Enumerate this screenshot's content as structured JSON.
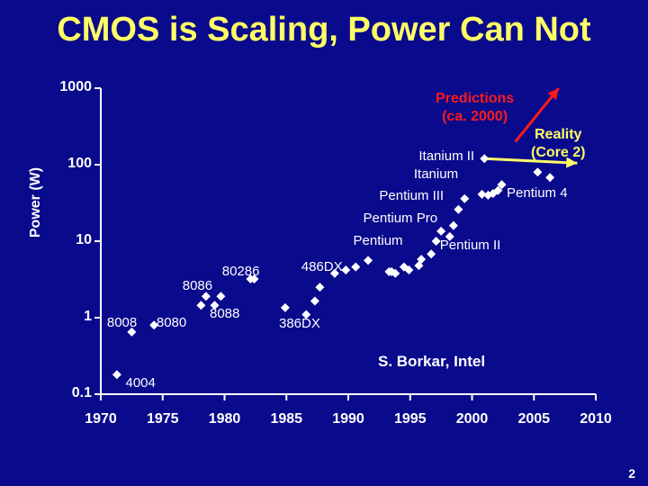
{
  "title": "CMOS is Scaling, Power Can Not",
  "credit": "S. Borkar, Intel",
  "page_number": "2",
  "colors": {
    "background": "#0a0a8c",
    "title": "#ffff66",
    "marker": "#ffffff",
    "prediction": "#ff1a1a",
    "reality": "#ffff66"
  },
  "chart_data": {
    "type": "scatter",
    "ylabel": "Power (W)",
    "xlabel": "",
    "yscale": "log",
    "ylim": [
      0.1,
      1000
    ],
    "xlim": [
      1970,
      2010
    ],
    "ytick_labels": [
      "1000",
      "100",
      "10",
      "1",
      "0.1"
    ],
    "yticks": [
      1000,
      100,
      10,
      1,
      0.1
    ],
    "xtick_labels": [
      "1970",
      "1975",
      "1980",
      "1985",
      "1990",
      "1995",
      "2000",
      "2005",
      "2010"
    ],
    "xticks": [
      1970,
      1975,
      1980,
      1985,
      1990,
      1995,
      2000,
      2005,
      2010
    ],
    "grid": false,
    "points": [
      {
        "x": 1971.3,
        "y": 0.18
      },
      {
        "x": 1972.5,
        "y": 0.65
      },
      {
        "x": 1974.3,
        "y": 0.8
      },
      {
        "x": 1978.1,
        "y": 1.45
      },
      {
        "x": 1978.5,
        "y": 1.9
      },
      {
        "x": 1979.2,
        "y": 1.45
      },
      {
        "x": 1979.7,
        "y": 1.9
      },
      {
        "x": 1982.1,
        "y": 3.2
      },
      {
        "x": 1982.4,
        "y": 3.2
      },
      {
        "x": 1984.9,
        "y": 1.35
      },
      {
        "x": 1986.6,
        "y": 1.1
      },
      {
        "x": 1987.3,
        "y": 1.65
      },
      {
        "x": 1987.7,
        "y": 2.5
      },
      {
        "x": 1988.9,
        "y": 3.8
      },
      {
        "x": 1989.8,
        "y": 4.2
      },
      {
        "x": 1990.6,
        "y": 4.6
      },
      {
        "x": 1991.6,
        "y": 5.6
      },
      {
        "x": 1993.3,
        "y": 4.0
      },
      {
        "x": 1993.5,
        "y": 4.0
      },
      {
        "x": 1993.8,
        "y": 3.8
      },
      {
        "x": 1994.5,
        "y": 4.6
      },
      {
        "x": 1994.9,
        "y": 4.2
      },
      {
        "x": 1995.7,
        "y": 4.8
      },
      {
        "x": 1995.9,
        "y": 5.8
      },
      {
        "x": 1996.7,
        "y": 6.8
      },
      {
        "x": 1997.1,
        "y": 10.0
      },
      {
        "x": 1997.5,
        "y": 13.5
      },
      {
        "x": 1998.2,
        "y": 11.5
      },
      {
        "x": 1998.5,
        "y": 16.0
      },
      {
        "x": 1998.9,
        "y": 26.0
      },
      {
        "x": 1999.4,
        "y": 36.0
      },
      {
        "x": 2000.8,
        "y": 41.0
      },
      {
        "x": 2001.3,
        "y": 40.0
      },
      {
        "x": 2001.7,
        "y": 42.0
      },
      {
        "x": 2002.1,
        "y": 46.0
      },
      {
        "x": 2002.4,
        "y": 55.0
      },
      {
        "x": 2005.3,
        "y": 80.0
      },
      {
        "x": 2006.3,
        "y": 68.0
      },
      {
        "x": 2001.0,
        "y": 120.0
      }
    ],
    "annotations": [
      {
        "text": "4004",
        "x": 1972.0,
        "y": 0.14
      },
      {
        "text": "8008",
        "x": 1970.5,
        "y": 0.85
      },
      {
        "text": "8080",
        "x": 1974.5,
        "y": 0.85
      },
      {
        "text": "8086",
        "x": 1976.6,
        "y": 2.55
      },
      {
        "text": "8088",
        "x": 1978.8,
        "y": 1.1
      },
      {
        "text": "80286",
        "x": 1979.8,
        "y": 4.0
      },
      {
        "text": "386DX",
        "x": 1984.4,
        "y": 0.82
      },
      {
        "text": "486DX",
        "x": 1986.2,
        "y": 4.5
      },
      {
        "text": "Pentium",
        "x": 1990.4,
        "y": 10.0
      },
      {
        "text": "Pentium II",
        "x": 1997.4,
        "y": 8.8
      },
      {
        "text": "Pentium Pro",
        "x": 1991.2,
        "y": 19.5
      },
      {
        "text": "Pentium III",
        "x": 1992.5,
        "y": 39.0
      },
      {
        "text": "Pentium 4",
        "x": 2002.8,
        "y": 42.0
      },
      {
        "text": "Itanium",
        "x": 1995.3,
        "y": 75.0
      },
      {
        "text": "Itanium II",
        "x": 1995.7,
        "y": 128.0
      }
    ],
    "predictions_label": [
      "Predictions",
      "(ca. 2000)"
    ],
    "reality_label": [
      "Reality",
      "(Core 2)"
    ],
    "prediction_arrow": {
      "x0": 2003.5,
      "y0": 200,
      "x1": 2007.0,
      "y1": 1000
    },
    "reality_arrow": {
      "x0": 2001.0,
      "y0": 120,
      "x1": 2008.5,
      "y1": 105
    }
  }
}
